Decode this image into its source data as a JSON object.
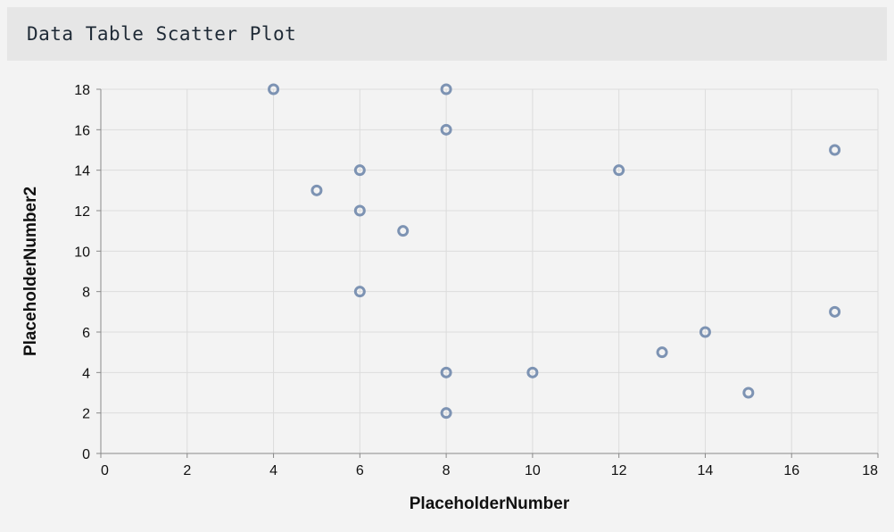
{
  "header": {
    "title": "Data Table Scatter Plot"
  },
  "chart_data": {
    "type": "scatter",
    "title": "",
    "xlabel": "PlaceholderNumber",
    "ylabel": "PlaceholderNumber2",
    "xlim": [
      0,
      18
    ],
    "ylim": [
      0,
      18
    ],
    "x_ticks": [
      0,
      2,
      4,
      6,
      8,
      10,
      12,
      14,
      16,
      18
    ],
    "y_ticks": [
      0,
      2,
      4,
      6,
      8,
      10,
      12,
      14,
      16,
      18
    ],
    "grid": true,
    "point_color": "#7d93b3",
    "points": [
      {
        "x": 4,
        "y": 18
      },
      {
        "x": 8,
        "y": 18
      },
      {
        "x": 8,
        "y": 16
      },
      {
        "x": 17,
        "y": 15
      },
      {
        "x": 6,
        "y": 14
      },
      {
        "x": 12,
        "y": 14
      },
      {
        "x": 5,
        "y": 13
      },
      {
        "x": 6,
        "y": 12
      },
      {
        "x": 7,
        "y": 11
      },
      {
        "x": 6,
        "y": 8
      },
      {
        "x": 17,
        "y": 7
      },
      {
        "x": 14,
        "y": 6
      },
      {
        "x": 13,
        "y": 5
      },
      {
        "x": 8,
        "y": 4
      },
      {
        "x": 10,
        "y": 4
      },
      {
        "x": 15,
        "y": 3
      },
      {
        "x": 8,
        "y": 2
      }
    ]
  }
}
